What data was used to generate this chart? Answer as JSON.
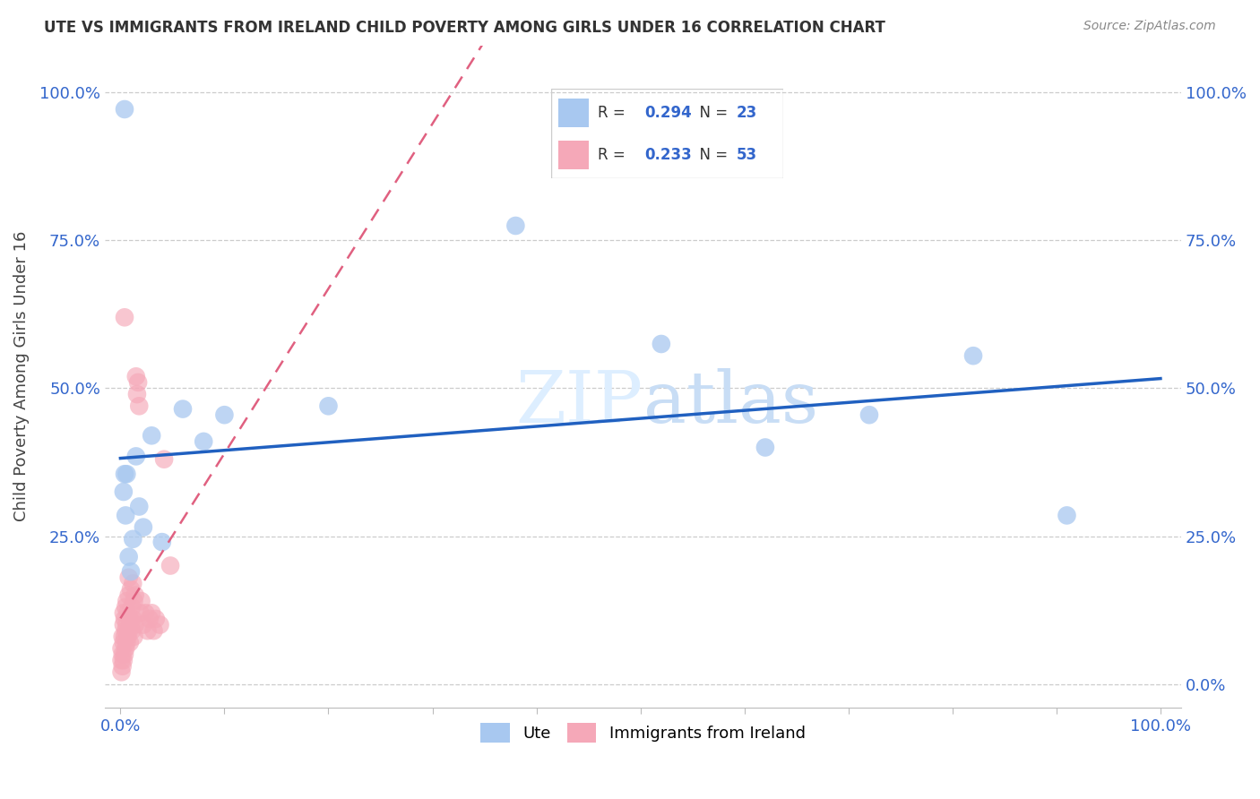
{
  "title": "UTE VS IMMIGRANTS FROM IRELAND CHILD POVERTY AMONG GIRLS UNDER 16 CORRELATION CHART",
  "source": "Source: ZipAtlas.com",
  "ylabel": "Child Poverty Among Girls Under 16",
  "ute_R": 0.294,
  "ute_N": 23,
  "ireland_R": 0.233,
  "ireland_N": 53,
  "ute_color": "#a8c8f0",
  "ireland_color": "#f5a8b8",
  "trend_ute_color": "#2060c0",
  "trend_ireland_color": "#e06080",
  "ute_x": [
    0.003,
    0.004,
    0.005,
    0.006,
    0.008,
    0.01,
    0.012,
    0.015,
    0.018,
    0.022,
    0.03,
    0.04,
    0.06,
    0.08,
    0.1,
    0.2,
    0.38,
    0.52,
    0.62,
    0.72,
    0.82,
    0.91,
    0.004
  ],
  "ute_y": [
    0.325,
    0.355,
    0.285,
    0.355,
    0.215,
    0.19,
    0.245,
    0.385,
    0.3,
    0.265,
    0.42,
    0.24,
    0.465,
    0.41,
    0.455,
    0.47,
    0.775,
    0.575,
    0.4,
    0.455,
    0.555,
    0.285,
    0.972
  ],
  "ireland_x": [
    0.001,
    0.001,
    0.001,
    0.002,
    0.002,
    0.002,
    0.003,
    0.003,
    0.003,
    0.003,
    0.004,
    0.004,
    0.004,
    0.005,
    0.005,
    0.005,
    0.006,
    0.006,
    0.006,
    0.007,
    0.007,
    0.008,
    0.008,
    0.008,
    0.009,
    0.009,
    0.01,
    0.01,
    0.011,
    0.011,
    0.012,
    0.012,
    0.013,
    0.013,
    0.014,
    0.014,
    0.015,
    0.016,
    0.017,
    0.018,
    0.019,
    0.02,
    0.022,
    0.024,
    0.026,
    0.028,
    0.03,
    0.032,
    0.034,
    0.038,
    0.042,
    0.048,
    0.004
  ],
  "ireland_y": [
    0.02,
    0.04,
    0.06,
    0.03,
    0.05,
    0.08,
    0.04,
    0.07,
    0.1,
    0.12,
    0.05,
    0.08,
    0.11,
    0.06,
    0.09,
    0.13,
    0.07,
    0.1,
    0.14,
    0.08,
    0.12,
    0.09,
    0.15,
    0.18,
    0.07,
    0.11,
    0.1,
    0.16,
    0.09,
    0.13,
    0.11,
    0.17,
    0.08,
    0.14,
    0.1,
    0.15,
    0.52,
    0.49,
    0.51,
    0.47,
    0.12,
    0.14,
    0.1,
    0.12,
    0.09,
    0.11,
    0.12,
    0.09,
    0.11,
    0.1,
    0.38,
    0.2,
    0.62
  ],
  "xticks": [
    0.0,
    0.1,
    0.2,
    0.3,
    0.4,
    0.5,
    0.6,
    0.7,
    0.8,
    0.9,
    1.0
  ],
  "yticks": [
    0.0,
    0.25,
    0.5,
    0.75,
    1.0
  ],
  "xlim": [
    -0.015,
    1.02
  ],
  "ylim": [
    -0.04,
    1.08
  ]
}
